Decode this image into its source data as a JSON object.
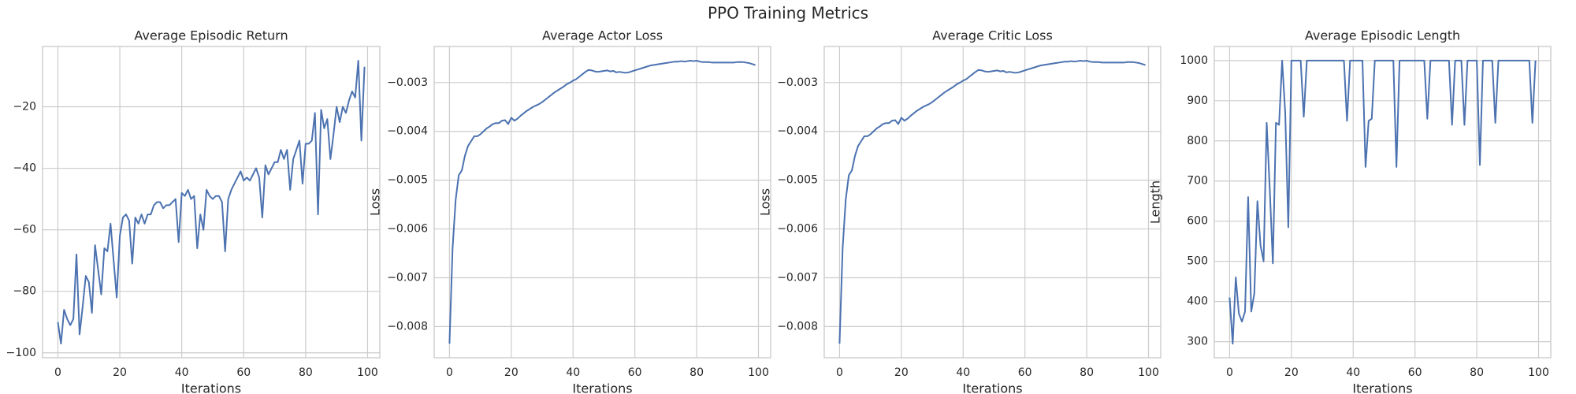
{
  "title": "PPO Training Metrics",
  "chart_data": [
    {
      "type": "line",
      "title": "Average Episodic Return",
      "xlabel": "Iterations",
      "color": "#4c72b0",
      "grid": true,
      "x": [
        0,
        1,
        2,
        3,
        4,
        5,
        6,
        7,
        8,
        9,
        10,
        11,
        12,
        13,
        14,
        15,
        16,
        17,
        18,
        19,
        20,
        21,
        22,
        23,
        24,
        25,
        26,
        27,
        28,
        29,
        30,
        31,
        32,
        33,
        34,
        35,
        36,
        37,
        38,
        39,
        40,
        41,
        42,
        43,
        44,
        45,
        46,
        47,
        48,
        49,
        50,
        51,
        52,
        53,
        54,
        55,
        56,
        57,
        58,
        59,
        60,
        61,
        62,
        63,
        64,
        65,
        66,
        67,
        68,
        69,
        70,
        71,
        72,
        73,
        74,
        75,
        76,
        77,
        78,
        79,
        80,
        81,
        82,
        83,
        84,
        85,
        86,
        87,
        88,
        89,
        90,
        91,
        92,
        93,
        94,
        95,
        96,
        97,
        98,
        99
      ],
      "values": [
        -90,
        -97,
        -86,
        -89,
        -91,
        -89,
        -68,
        -94,
        -85,
        -75,
        -77,
        -87,
        -65,
        -73,
        -81,
        -66,
        -67,
        -58,
        -70,
        -82,
        -62,
        -56,
        -55,
        -57,
        -71,
        -56,
        -58,
        -55,
        -58,
        -55,
        -55,
        -52,
        -51,
        -51,
        -53,
        -52,
        -52,
        -51,
        -50,
        -64,
        -48,
        -49,
        -47,
        -50,
        -49,
        -66,
        -55,
        -60,
        -47,
        -49,
        -50,
        -49,
        -49,
        -51,
        -67,
        -50,
        -47,
        -45,
        -43,
        -41,
        -44,
        -43,
        -44,
        -42,
        -40,
        -43,
        -56,
        -39,
        -42,
        -40,
        -38,
        -38,
        -34,
        -37,
        -34,
        -47,
        -37,
        -34,
        -31,
        -45,
        -32,
        -32,
        -31,
        -22,
        -55,
        -21,
        -27,
        -24,
        -37,
        -29,
        -20,
        -25,
        -20,
        -22,
        -18,
        -15,
        -17,
        -5,
        -31,
        -7
      ],
      "xlim": [
        -4.95,
        103.95
      ],
      "xticks": [
        0,
        20,
        40,
        60,
        80,
        100
      ],
      "ylim": [
        -101.6,
        -0.4
      ],
      "yticks": [
        {
          "value": -100,
          "label": "−100"
        },
        {
          "value": -80,
          "label": "−80"
        },
        {
          "value": -60,
          "label": "−60"
        },
        {
          "value": -40,
          "label": "−40"
        },
        {
          "value": -20,
          "label": "−20"
        }
      ]
    },
    {
      "type": "line",
      "title": "Average Actor Loss",
      "xlabel": "Iterations",
      "ylabel": "Loss",
      "color": "#4c72b0",
      "grid": true,
      "x": [
        0,
        1,
        2,
        3,
        4,
        5,
        6,
        7,
        8,
        9,
        10,
        11,
        12,
        13,
        14,
        15,
        16,
        17,
        18,
        19,
        20,
        21,
        22,
        23,
        24,
        25,
        26,
        27,
        28,
        29,
        30,
        31,
        32,
        33,
        34,
        35,
        36,
        37,
        38,
        39,
        40,
        41,
        42,
        43,
        44,
        45,
        46,
        47,
        48,
        49,
        50,
        51,
        52,
        53,
        54,
        55,
        56,
        57,
        58,
        59,
        60,
        61,
        62,
        63,
        64,
        65,
        66,
        67,
        68,
        69,
        70,
        71,
        72,
        73,
        74,
        75,
        76,
        77,
        78,
        79,
        80,
        81,
        82,
        83,
        84,
        85,
        86,
        87,
        88,
        89,
        90,
        91,
        92,
        93,
        94,
        95,
        96,
        97,
        98,
        99
      ],
      "values": [
        -0.00835,
        -0.0064,
        -0.0054,
        -0.0049,
        -0.0048,
        -0.0045,
        -0.0043,
        -0.0042,
        -0.0041,
        -0.0041,
        -0.00406,
        -0.004,
        -0.00394,
        -0.0039,
        -0.00385,
        -0.00383,
        -0.00383,
        -0.00378,
        -0.00377,
        -0.00385,
        -0.00372,
        -0.00378,
        -0.00374,
        -0.00368,
        -0.00363,
        -0.00358,
        -0.00354,
        -0.0035,
        -0.00347,
        -0.00344,
        -0.0034,
        -0.00335,
        -0.0033,
        -0.00325,
        -0.0032,
        -0.00316,
        -0.00312,
        -0.00308,
        -0.00303,
        -0.003,
        -0.00296,
        -0.00293,
        -0.00288,
        -0.00283,
        -0.00278,
        -0.00274,
        -0.00275,
        -0.00277,
        -0.00278,
        -0.00277,
        -0.00276,
        -0.00275,
        -0.00277,
        -0.00276,
        -0.00279,
        -0.00278,
        -0.00279,
        -0.0028,
        -0.00279,
        -0.00277,
        -0.00275,
        -0.00273,
        -0.00271,
        -0.00269,
        -0.00267,
        -0.00265,
        -0.00264,
        -0.00263,
        -0.00262,
        -0.00261,
        -0.0026,
        -0.00259,
        -0.00258,
        -0.00257,
        -0.00257,
        -0.00256,
        -0.00257,
        -0.00256,
        -0.00255,
        -0.00256,
        -0.00255,
        -0.00257,
        -0.00258,
        -0.00258,
        -0.00258,
        -0.00259,
        -0.00259,
        -0.00259,
        -0.00259,
        -0.00259,
        -0.00259,
        -0.00259,
        -0.00259,
        -0.00258,
        -0.00258,
        -0.00258,
        -0.00259,
        -0.0026,
        -0.00262,
        -0.00264
      ],
      "xlim": [
        -4.95,
        103.95
      ],
      "xticks": [
        0,
        20,
        40,
        60,
        80,
        100
      ],
      "ylim": [
        -0.00864,
        -0.00226
      ],
      "yticks": [
        {
          "value": -0.008,
          "label": "−0.008"
        },
        {
          "value": -0.007,
          "label": "−0.007"
        },
        {
          "value": -0.006,
          "label": "−0.006"
        },
        {
          "value": -0.005,
          "label": "−0.005"
        },
        {
          "value": -0.004,
          "label": "−0.004"
        },
        {
          "value": -0.003,
          "label": "−0.003"
        }
      ]
    },
    {
      "type": "line",
      "title": "Average Critic Loss",
      "xlabel": "Iterations",
      "ylabel": "Loss",
      "color": "#4c72b0",
      "grid": true,
      "x": [
        0,
        1,
        2,
        3,
        4,
        5,
        6,
        7,
        8,
        9,
        10,
        11,
        12,
        13,
        14,
        15,
        16,
        17,
        18,
        19,
        20,
        21,
        22,
        23,
        24,
        25,
        26,
        27,
        28,
        29,
        30,
        31,
        32,
        33,
        34,
        35,
        36,
        37,
        38,
        39,
        40,
        41,
        42,
        43,
        44,
        45,
        46,
        47,
        48,
        49,
        50,
        51,
        52,
        53,
        54,
        55,
        56,
        57,
        58,
        59,
        60,
        61,
        62,
        63,
        64,
        65,
        66,
        67,
        68,
        69,
        70,
        71,
        72,
        73,
        74,
        75,
        76,
        77,
        78,
        79,
        80,
        81,
        82,
        83,
        84,
        85,
        86,
        87,
        88,
        89,
        90,
        91,
        92,
        93,
        94,
        95,
        96,
        97,
        98,
        99
      ],
      "values": [
        -0.00835,
        -0.0064,
        -0.0054,
        -0.0049,
        -0.0048,
        -0.0045,
        -0.0043,
        -0.0042,
        -0.0041,
        -0.0041,
        -0.00406,
        -0.004,
        -0.00394,
        -0.0039,
        -0.00385,
        -0.00383,
        -0.00383,
        -0.00378,
        -0.00377,
        -0.00385,
        -0.00372,
        -0.00378,
        -0.00374,
        -0.00368,
        -0.00363,
        -0.00358,
        -0.00354,
        -0.0035,
        -0.00347,
        -0.00344,
        -0.0034,
        -0.00335,
        -0.0033,
        -0.00325,
        -0.0032,
        -0.00316,
        -0.00312,
        -0.00308,
        -0.00303,
        -0.003,
        -0.00296,
        -0.00293,
        -0.00288,
        -0.00283,
        -0.00278,
        -0.00274,
        -0.00275,
        -0.00277,
        -0.00278,
        -0.00277,
        -0.00276,
        -0.00275,
        -0.00277,
        -0.00276,
        -0.00279,
        -0.00278,
        -0.00279,
        -0.0028,
        -0.00279,
        -0.00277,
        -0.00275,
        -0.00273,
        -0.00271,
        -0.00269,
        -0.00267,
        -0.00265,
        -0.00264,
        -0.00263,
        -0.00262,
        -0.00261,
        -0.0026,
        -0.00259,
        -0.00258,
        -0.00257,
        -0.00257,
        -0.00256,
        -0.00257,
        -0.00256,
        -0.00255,
        -0.00256,
        -0.00255,
        -0.00257,
        -0.00258,
        -0.00258,
        -0.00258,
        -0.00259,
        -0.00259,
        -0.00259,
        -0.00259,
        -0.00259,
        -0.00259,
        -0.00259,
        -0.00259,
        -0.00258,
        -0.00258,
        -0.00258,
        -0.00259,
        -0.0026,
        -0.00262,
        -0.00264
      ],
      "xlim": [
        -4.95,
        103.95
      ],
      "xticks": [
        0,
        20,
        40,
        60,
        80,
        100
      ],
      "ylim": [
        -0.00864,
        -0.00226
      ],
      "yticks": [
        {
          "value": -0.008,
          "label": "−0.008"
        },
        {
          "value": -0.007,
          "label": "−0.007"
        },
        {
          "value": -0.006,
          "label": "−0.006"
        },
        {
          "value": -0.005,
          "label": "−0.005"
        },
        {
          "value": -0.004,
          "label": "−0.004"
        },
        {
          "value": -0.003,
          "label": "−0.003"
        }
      ]
    },
    {
      "type": "line",
      "title": "Average Episodic Length",
      "xlabel": "Iterations",
      "ylabel": "Length",
      "color": "#4c72b0",
      "grid": true,
      "x": [
        0,
        1,
        2,
        3,
        4,
        5,
        6,
        7,
        8,
        9,
        10,
        11,
        12,
        13,
        14,
        15,
        16,
        17,
        18,
        19,
        20,
        21,
        22,
        23,
        24,
        25,
        26,
        27,
        28,
        29,
        30,
        31,
        32,
        33,
        34,
        35,
        36,
        37,
        38,
        39,
        40,
        41,
        42,
        43,
        44,
        45,
        46,
        47,
        48,
        49,
        50,
        51,
        52,
        53,
        54,
        55,
        56,
        57,
        58,
        59,
        60,
        61,
        62,
        63,
        64,
        65,
        66,
        67,
        68,
        69,
        70,
        71,
        72,
        73,
        74,
        75,
        76,
        77,
        78,
        79,
        80,
        81,
        82,
        83,
        84,
        85,
        86,
        87,
        88,
        89,
        90,
        91,
        92,
        93,
        94,
        95,
        96,
        97,
        98,
        99
      ],
      "values": [
        410,
        295,
        460,
        370,
        350,
        375,
        660,
        375,
        420,
        650,
        540,
        500,
        845,
        680,
        495,
        845,
        840,
        1000,
        870,
        585,
        1000,
        1000,
        1000,
        1000,
        860,
        1000,
        1000,
        1000,
        1000,
        1000,
        1000,
        1000,
        1000,
        1000,
        1000,
        1000,
        1000,
        1000,
        850,
        1000,
        1000,
        1000,
        1000,
        1000,
        735,
        850,
        855,
        1000,
        1000,
        1000,
        1000,
        1000,
        1000,
        1000,
        735,
        1000,
        1000,
        1000,
        1000,
        1000,
        1000,
        1000,
        1000,
        1000,
        855,
        1000,
        1000,
        1000,
        1000,
        1000,
        1000,
        1000,
        840,
        1000,
        1000,
        1000,
        840,
        1000,
        1000,
        1000,
        1000,
        740,
        1000,
        1000,
        1000,
        1000,
        845,
        1000,
        1000,
        1000,
        1000,
        1000,
        1000,
        1000,
        1000,
        1000,
        1000,
        1000,
        845,
        1000
      ],
      "xlim": [
        -4.95,
        103.95
      ],
      "xticks": [
        0,
        20,
        40,
        60,
        80,
        100
      ],
      "ylim": [
        260,
        1035
      ],
      "yticks": [
        300,
        400,
        500,
        600,
        700,
        800,
        900,
        1000
      ]
    }
  ]
}
